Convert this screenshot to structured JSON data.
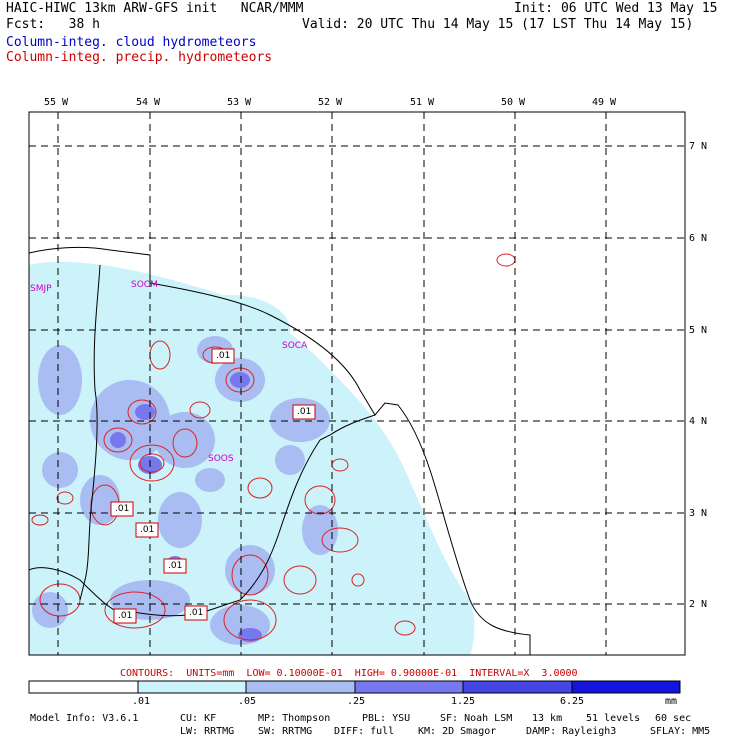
{
  "header": {
    "title": "HAIC-HIWC 13km ARW-GFS init   NCAR/MMM",
    "fcst": "Fcst:   38 h",
    "init": "Init: 06 UTC Wed 13 May 15",
    "valid": "Valid: 20 UTC Thu 14 May 15 (17 LST Thu 14 May 15)",
    "legend_cloud": "Column-integ. cloud hydrometeors",
    "legend_precip": "Column-integ. precip. hydrometeors"
  },
  "axes": {
    "lon_labels": [
      "55 W",
      "54 W",
      "53 W",
      "52 W",
      "51 W",
      "50 W",
      "49 W"
    ],
    "lat_labels": [
      "7 N",
      "6 N",
      "5 N",
      "4 N",
      "3 N",
      "2 N"
    ]
  },
  "stations": [
    "SMJP",
    "SOCM",
    "SOCA",
    "SOOS"
  ],
  "contour_labels": [
    ".01",
    ".01",
    ".01",
    ".01",
    ".01",
    ".01",
    ".01"
  ],
  "contours_info": "CONTOURS:  UNITS=mm  LOW= 0.10000E-01  HIGH= 0.90000E-01  INTERVAL=X  3.0000",
  "colorbar": {
    "ticks": [
      ".01",
      ".05",
      ".25",
      "1.25",
      "6.25"
    ],
    "units": "mm",
    "colors": [
      "#ffffff",
      "#ccf2fa",
      "#a9bdf2",
      "#7878ee",
      "#4545e6",
      "#1414e0"
    ]
  },
  "model_info": {
    "line1": [
      "Model Info: V3.6.1",
      "CU: KF",
      "MP: Thompson",
      "PBL: YSU",
      "SF: Noah LSM",
      "13 km",
      "51 levels",
      "60 sec"
    ],
    "line2": [
      "LW: RRTMG",
      "SW: RRTMG",
      "DIFF: full",
      "KM: 2D Smagor",
      "DAMP: Rayleigh3",
      "SFLAY: MM5"
    ]
  }
}
